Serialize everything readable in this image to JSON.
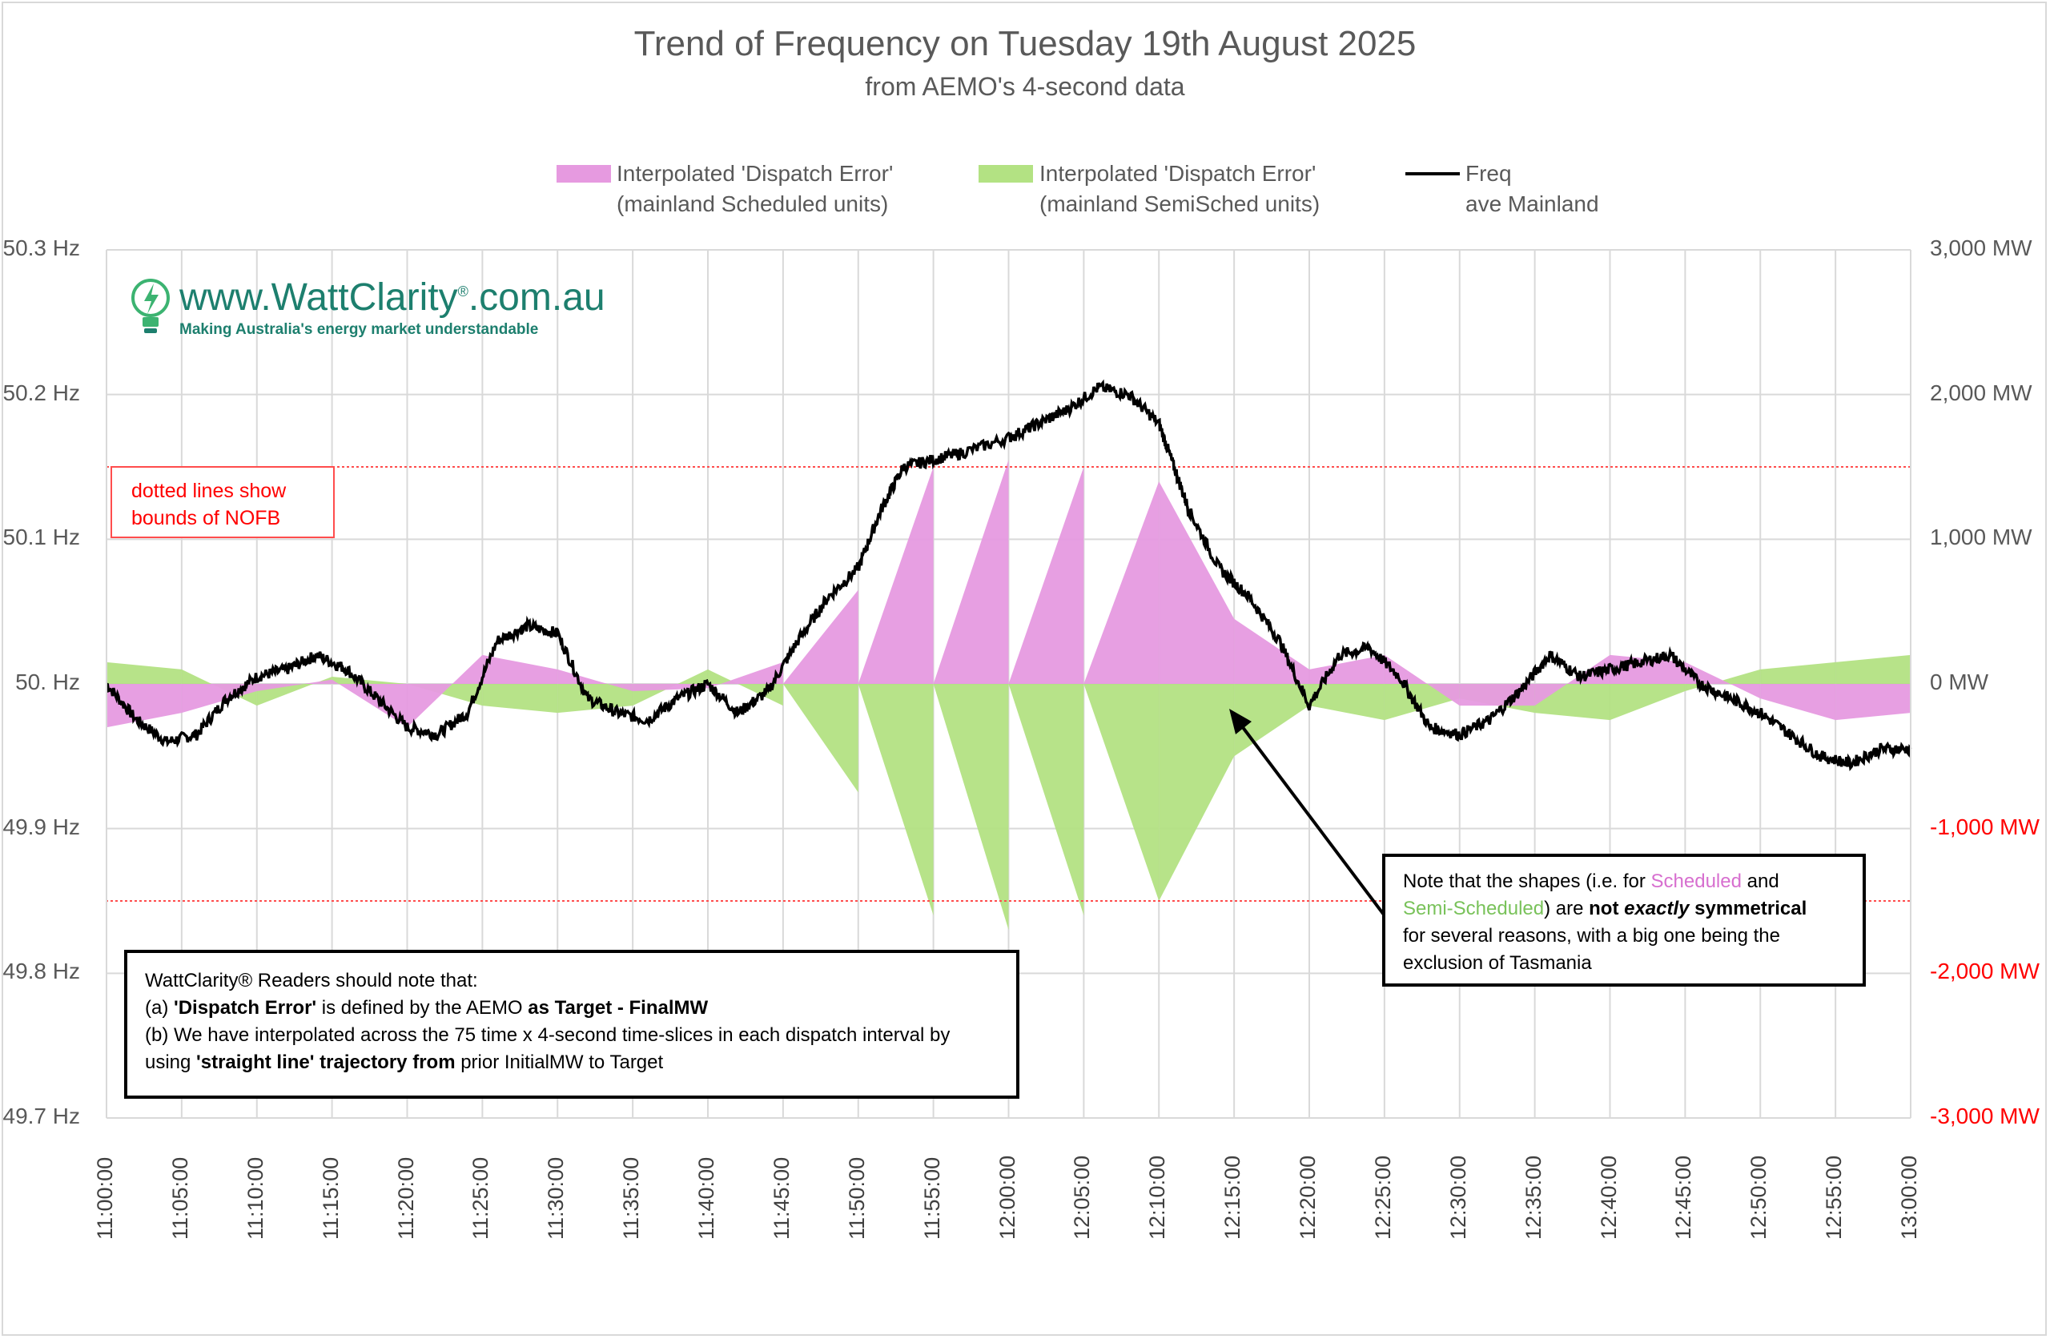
{
  "chart_data": {
    "type": "line",
    "title": "Trend of Frequency on Tuesday 19th August 2025",
    "subtitle": "from AEMO's 4-second data",
    "series": [
      {
        "name": "Interpolated 'Dispatch Error'",
        "sub": "(mainland Scheduled units)",
        "kind": "area",
        "color": "#e69ae0",
        "axis": "right"
      },
      {
        "name": "Interpolated 'Dispatch Error'",
        "sub": "(mainland SemiSched units)",
        "kind": "area",
        "color": "#b3e283",
        "axis": "right"
      },
      {
        "name": "Freq",
        "sub": "ave Mainland",
        "kind": "line",
        "color": "#000000",
        "axis": "left"
      }
    ],
    "freq": {
      "x": [
        "11:00:00",
        "11:02:00",
        "11:04:00",
        "11:06:00",
        "11:08:00",
        "11:10:00",
        "11:12:00",
        "11:14:00",
        "11:16:00",
        "11:18:00",
        "11:20:00",
        "11:22:00",
        "11:24:00",
        "11:26:00",
        "11:28:00",
        "11:30:00",
        "11:32:00",
        "11:34:00",
        "11:36:00",
        "11:38:00",
        "11:40:00",
        "11:42:00",
        "11:44:00",
        "11:46:00",
        "11:48:00",
        "11:50:00",
        "11:51:30",
        "11:53:00",
        "11:55:00",
        "11:57:00",
        "12:00:00",
        "12:02:00",
        "12:04:00",
        "12:06:00",
        "12:08:00",
        "12:10:00",
        "12:11:00",
        "12:12:00",
        "12:14:00",
        "12:16:00",
        "12:18:00",
        "12:20:00",
        "12:22:00",
        "12:24:00",
        "12:26:00",
        "12:28:00",
        "12:30:00",
        "12:32:00",
        "12:34:00",
        "12:36:00",
        "12:38:00",
        "12:40:00",
        "12:42:00",
        "12:44:00",
        "12:46:00",
        "12:48:00",
        "12:50:00",
        "12:52:00",
        "12:54:00",
        "12:56:00",
        "12:58:00",
        "13:00:00"
      ],
      "y": [
        50.0,
        49.975,
        49.96,
        49.965,
        49.99,
        50.005,
        50.01,
        50.02,
        50.01,
        49.99,
        49.97,
        49.965,
        49.98,
        50.03,
        50.04,
        50.035,
        49.99,
        49.98,
        49.975,
        49.99,
        50.0,
        49.98,
        49.995,
        50.03,
        50.06,
        50.08,
        50.12,
        50.15,
        50.155,
        50.16,
        50.17,
        50.18,
        50.19,
        50.205,
        50.2,
        50.18,
        50.15,
        50.12,
        50.08,
        50.06,
        50.03,
        49.985,
        50.02,
        50.025,
        50.005,
        49.97,
        49.965,
        49.975,
        49.995,
        50.02,
        50.005,
        50.01,
        50.015,
        50.02,
        50.0,
        49.99,
        49.98,
        49.965,
        49.95,
        49.945,
        49.955,
        49.955
      ]
    },
    "dispatch_error_mw": {
      "x": [
        "11:00",
        "11:05",
        "11:10",
        "11:15",
        "11:20",
        "11:25",
        "11:30",
        "11:35",
        "11:40",
        "11:45",
        "11:50",
        "11:55",
        "12:00",
        "12:05",
        "12:10",
        "12:15",
        "12:20",
        "12:25",
        "12:30",
        "12:35",
        "12:40",
        "12:45",
        "12:50",
        "12:55",
        "13:00"
      ],
      "scheduled": [
        -300,
        -200,
        -50,
        30,
        -300,
        200,
        100,
        -50,
        -30,
        150,
        650,
        1500,
        1550,
        1500,
        1400,
        450,
        100,
        200,
        -150,
        -150,
        200,
        150,
        -100,
        -250,
        -200
      ],
      "semisched": [
        150,
        100,
        -150,
        50,
        0,
        -150,
        -200,
        -150,
        100,
        -150,
        -750,
        -1600,
        -1700,
        -1600,
        -1500,
        -500,
        -150,
        -250,
        -100,
        -200,
        -250,
        -50,
        100,
        150,
        200
      ]
    },
    "y_left": {
      "min": 49.7,
      "max": 50.3,
      "ticks": [
        "50.3 Hz",
        "50.2 Hz",
        "50.1 Hz",
        "50. Hz",
        "49.9 Hz",
        "49.8 Hz",
        "49.7 Hz"
      ]
    },
    "y_right": {
      "min": -3000,
      "max": 3000,
      "ticks": [
        "3,000 MW",
        "2,000 MW",
        "1,000 MW",
        "0 MW",
        "-1,000 MW",
        "-2,000 MW",
        "-3,000 MW"
      ]
    },
    "x_ticks": [
      "11:00:00",
      "11:05:00",
      "11:10:00",
      "11:15:00",
      "11:20:00",
      "11:25:00",
      "11:30:00",
      "11:35:00",
      "11:40:00",
      "11:45:00",
      "11:50:00",
      "11:55:00",
      "12:00:00",
      "12:05:00",
      "12:10:00",
      "12:15:00",
      "12:20:00",
      "12:25:00",
      "12:30:00",
      "12:35:00",
      "12:40:00",
      "12:45:00",
      "12:50:00",
      "12:55:00",
      "13:00:00"
    ],
    "nofb_bounds_hz": [
      49.85,
      50.15
    ],
    "grid": true,
    "legend_position": "top"
  },
  "logo": {
    "url": "www.WattClarity",
    "url_suffix": ".com.au",
    "reg": "®",
    "tagline": "Making Australia's energy market understandable"
  },
  "annotations": {
    "nofb": [
      "dotted lines show",
      "bounds of NOFB"
    ],
    "readers": {
      "line1": "WattClarity® Readers should note that:",
      "a_prefix": "(a) ",
      "a_bold1": "'Dispatch Error'",
      "a_mid": " is defined by the AEMO ",
      "a_bold2": "as Target - FinalMW",
      "b_line1": "(b)  We have interpolated across the 75 time x 4-second time-slices in each dispatch interval by",
      "b_pre": "using ",
      "b_bold": "'straight line' trajectory from",
      "b_post": " prior InitialMW to Target"
    },
    "note": {
      "t1": "Note that the shapes (i.e. for ",
      "scheduled": "Scheduled",
      "t2": " and",
      "semi": "Semi-Scheduled",
      "t3": ") are ",
      "not": "not ",
      "exactly": "exactly",
      "symm": " symmetrical",
      "line3": "for several reasons, with a big one being the",
      "line4": "exclusion of Tasmania"
    }
  }
}
